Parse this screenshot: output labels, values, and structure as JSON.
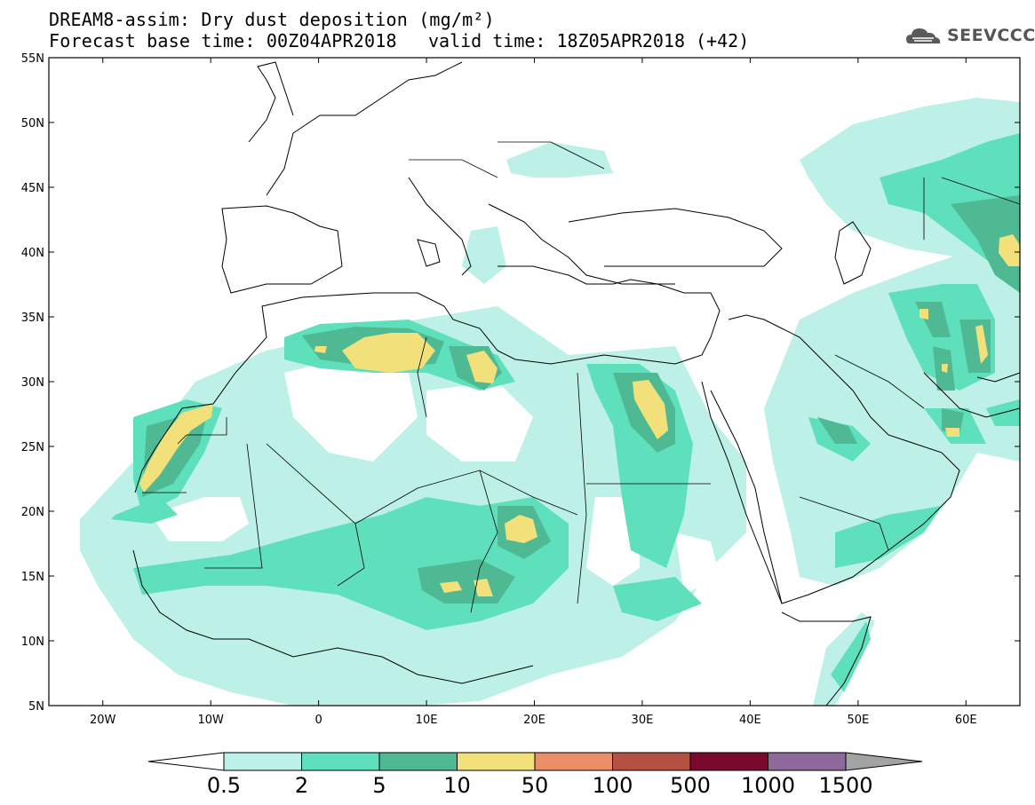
{
  "header": {
    "title": "DREAM8-assim: Dry dust deposition (mg/m²)",
    "base_time": "Forecast base time: 00Z04APR2018",
    "valid_time": "valid time: 18Z05APR2018 (+42)"
  },
  "logo": {
    "text": "SEEVCCC",
    "icon": "cloud-icon"
  },
  "map": {
    "lat_labels": [
      "55N",
      "50N",
      "45N",
      "40N",
      "35N",
      "30N",
      "25N",
      "20N",
      "15N",
      "10N",
      "5N"
    ],
    "lon_labels": [
      "20W",
      "10W",
      "0",
      "10E",
      "20E",
      "30E",
      "40E",
      "50E",
      "60E"
    ],
    "lat_range": [
      5,
      55
    ],
    "lon_range": [
      -25,
      65
    ]
  },
  "colorbar": {
    "labels": [
      "0.5",
      "2",
      "5",
      "10",
      "50",
      "100",
      "500",
      "1000",
      "1500"
    ],
    "colors": [
      "#bdf0e6",
      "#5fe0bc",
      "#4fb994",
      "#f2e07a",
      "#eb8f68",
      "#b55042",
      "#7a0a2c",
      "#8e6a9c"
    ],
    "under_color": "#ffffff",
    "over_color": "#a3a3a3"
  }
}
